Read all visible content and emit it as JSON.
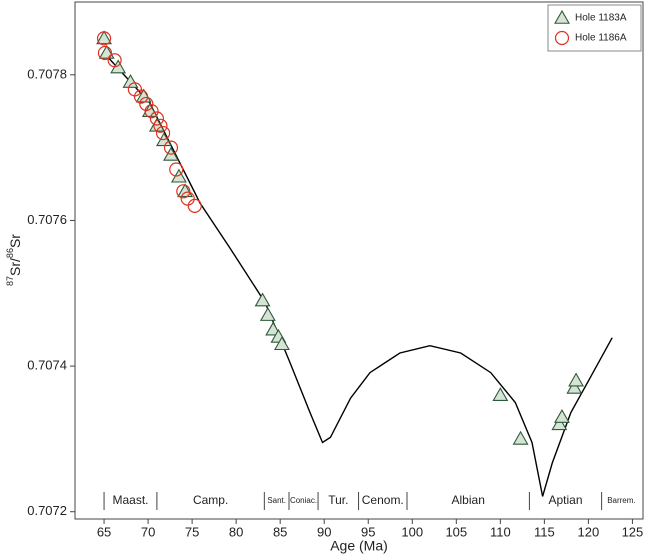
{
  "chart_data": {
    "type": "scatter",
    "xlabel": "Age (Ma)",
    "ylabel_parts": [
      {
        "text": "87",
        "sup": true
      },
      {
        "text": "Sr/",
        "sup": false
      },
      {
        "text": "86",
        "sup": true
      },
      {
        "text": "Sr",
        "sup": false
      }
    ],
    "xlim": [
      61.7,
      126.2
    ],
    "ylim": [
      0.70719,
      0.7079
    ],
    "xticks": [
      65,
      70,
      75,
      80,
      85,
      90,
      95,
      100,
      105,
      110,
      115,
      120,
      125
    ],
    "yticks": [
      0.7072,
      0.7074,
      0.7076,
      0.7078
    ],
    "legend": "upper right",
    "series": [
      {
        "name": "Hole 1183A",
        "marker": "triangle",
        "color": "#2f5a3a",
        "fill": "#d6e4d6",
        "x": [
          65.0,
          65.3,
          66.6,
          68.0,
          69.5,
          70.2,
          71.0,
          71.8,
          72.6,
          73.5,
          74.2,
          83.0,
          83.6,
          84.2,
          84.8,
          85.2,
          110.0,
          112.3,
          116.7,
          117.0,
          118.4,
          118.6
        ],
        "values": [
          0.70785,
          0.70783,
          0.70781,
          0.70779,
          0.70777,
          0.70775,
          0.70773,
          0.70771,
          0.70769,
          0.70766,
          0.70764,
          0.70749,
          0.70747,
          0.70745,
          0.70744,
          0.70743,
          0.70736,
          0.7073,
          0.70732,
          0.70733,
          0.70737,
          0.70738
        ]
      },
      {
        "name": "Hole 1186A",
        "marker": "circle",
        "color": "#e03020",
        "fill": "none",
        "x": [
          65.0,
          65.1,
          66.2,
          68.5,
          69.2,
          69.8,
          70.4,
          71.0,
          71.4,
          71.7,
          72.6,
          73.2,
          74.0,
          74.5,
          75.3
        ],
        "values": [
          0.70785,
          0.70783,
          0.70782,
          0.70778,
          0.70777,
          0.70776,
          0.70775,
          0.70774,
          0.70773,
          0.70772,
          0.7077,
          0.70767,
          0.70764,
          0.70763,
          0.70762
        ]
      }
    ],
    "curve": {
      "color": "#000000",
      "x": [
        65.0,
        70.2,
        75.9,
        79.3,
        83.3,
        86.1,
        88.4,
        89.8,
        90.7,
        93.0,
        95.2,
        98.6,
        102.0,
        105.5,
        108.9,
        111.7,
        113.6,
        114.8,
        115.9,
        118.0,
        120.2,
        122.7
      ],
      "values": [
        0.70783,
        0.707761,
        0.707624,
        0.707562,
        0.707487,
        0.707405,
        0.707336,
        0.707295,
        0.707302,
        0.707356,
        0.707391,
        0.707418,
        0.707428,
        0.707418,
        0.707391,
        0.70735,
        0.707295,
        0.707221,
        0.707267,
        0.707336,
        0.707384,
        0.707439
      ]
    },
    "stages": [
      {
        "label": "Maast.",
        "from": 65,
        "to": 71
      },
      {
        "label": "Camp.",
        "from": 71,
        "to": 83.2
      },
      {
        "label": "Sant.",
        "from": 83.2,
        "to": 86
      },
      {
        "label": "Coniac.",
        "from": 86,
        "to": 89.3
      },
      {
        "label": "Tur.",
        "from": 89.3,
        "to": 93.9
      },
      {
        "label": "Cenom.",
        "from": 93.9,
        "to": 99.4
      },
      {
        "label": "Albian",
        "from": 99.4,
        "to": 113.3
      },
      {
        "label": "Aptian",
        "from": 113.3,
        "to": 121.5
      },
      {
        "label": "Barrem.",
        "from": 121.5,
        "to": 126
      }
    ]
  }
}
